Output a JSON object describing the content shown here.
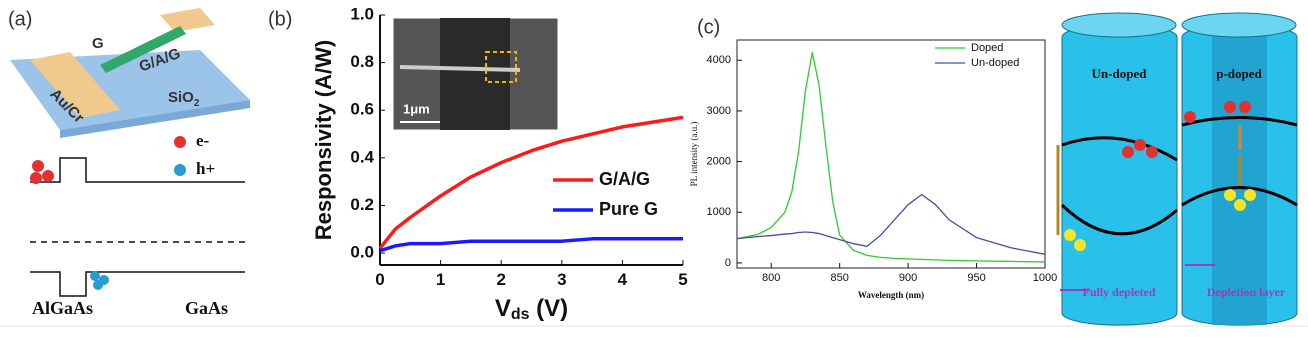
{
  "panel_labels": [
    "(a)",
    "(b)",
    "(c)"
  ],
  "diagrams": {
    "a": {
      "electrode": "Au/Cr",
      "graphene": "G",
      "wire": "G/A/G",
      "substrate": [
        "SiO",
        "2"
      ],
      "electron": "e-",
      "hole": "h+",
      "left_material": "AlGaAs",
      "right_material": "GaAs"
    },
    "d": {
      "left_title": "Un-doped",
      "right_title": "p-doped",
      "left_caption": "Fully depleted",
      "right_caption": "Depletion layer"
    }
  },
  "chart_data": [
    {
      "type": "line",
      "xlabel": [
        "V",
        "ds",
        " (V)"
      ],
      "ylabel": "Responsivity (A/W)",
      "inset_scale": "1μm",
      "x": [
        0,
        0.25,
        0.5,
        1,
        1.5,
        2,
        2.5,
        3,
        3.5,
        4,
        4.5,
        5
      ],
      "series": [
        {
          "name": "G/A/G",
          "color": "#ff1a1a",
          "values": [
            0.02,
            0.1,
            0.15,
            0.24,
            0.32,
            0.38,
            0.43,
            0.47,
            0.5,
            0.53,
            0.55,
            0.57
          ]
        },
        {
          "name": "Pure G",
          "color": "#1a1aff",
          "values": [
            0.01,
            0.03,
            0.04,
            0.04,
            0.05,
            0.05,
            0.05,
            0.05,
            0.06,
            0.06,
            0.06,
            0.06
          ]
        }
      ],
      "xlim": [
        0,
        5
      ],
      "xticks": [
        0,
        1,
        2,
        3,
        4,
        5
      ],
      "ylim": [
        -0.05,
        1.0
      ],
      "yticks": [
        {
          "value": 0,
          "label": "0.0"
        },
        0.2,
        0.4,
        0.6,
        0.8,
        {
          "value": 1,
          "label": "1.0"
        }
      ],
      "legend": "lower-right"
    },
    {
      "type": "line",
      "xlabel": "Wavelength (nm)",
      "ylabel": "PL intensity (a.u.)",
      "x": [
        775,
        790,
        800,
        810,
        815,
        820,
        825,
        830,
        835,
        840,
        845,
        850,
        860,
        870,
        880,
        890,
        900,
        910,
        920,
        930,
        950,
        975,
        1000
      ],
      "series": [
        {
          "name": "Doped",
          "color": "#2ecc2e",
          "values": [
            480,
            560,
            700,
            1000,
            1400,
            2200,
            3400,
            4150,
            3500,
            2300,
            1200,
            550,
            250,
            150,
            110,
            90,
            80,
            70,
            60,
            50,
            40,
            30,
            20
          ]
        },
        {
          "name": "Un-doped",
          "color": "#4a4aa8",
          "values": [
            480,
            520,
            540,
            570,
            580,
            600,
            610,
            600,
            580,
            540,
            500,
            460,
            380,
            330,
            550,
            850,
            1150,
            1350,
            1150,
            850,
            500,
            300,
            170
          ]
        }
      ],
      "xlim": [
        775,
        1000
      ],
      "xticks": [
        800,
        850,
        900,
        950,
        1000
      ],
      "ylim": [
        -100,
        4400
      ],
      "yticks": [
        0,
        1000,
        2000,
        3000,
        4000
      ],
      "legend": "upper-right"
    }
  ]
}
